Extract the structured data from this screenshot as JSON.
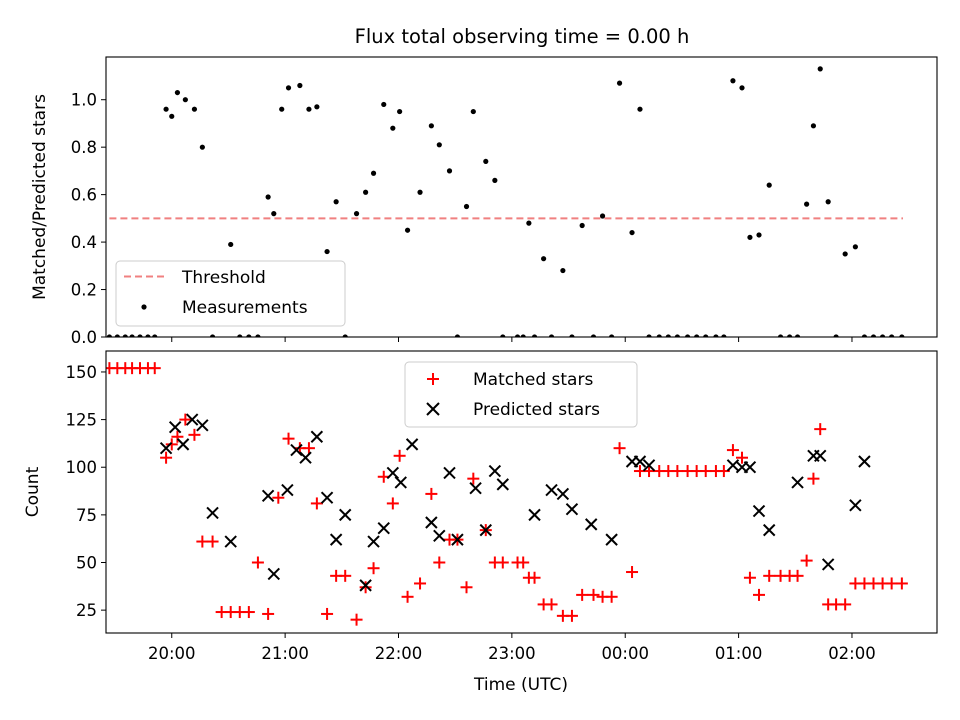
{
  "figure": {
    "title": "Flux total observing time = 0.00 h",
    "xlabel": "Time (UTC)"
  },
  "chart_data": [
    {
      "type": "scatter",
      "panel": "top",
      "title": "Flux total observing time = 0.00 h",
      "ylabel": "Matched/Predicted stars",
      "xlim": [
        -0.58,
        6.75
      ],
      "ylim": [
        0,
        1.18
      ],
      "yticks": [
        0.0,
        0.2,
        0.4,
        0.6,
        0.8,
        1.0
      ],
      "ytick_labels": [
        "0.0",
        "0.2",
        "0.4",
        "0.6",
        "0.8",
        "1.0"
      ],
      "legend": {
        "placement": "lower-left",
        "entries": [
          "Threshold",
          "Measurements"
        ]
      },
      "series": [
        {
          "name": "Threshold",
          "kind": "dashed-line",
          "color": "#f08080",
          "x": [
            -0.55,
            6.45
          ],
          "y": [
            0.5,
            0.5
          ]
        },
        {
          "name": "Measurements",
          "kind": "dots",
          "color": "#000000",
          "x": [
            -0.55,
            -0.48,
            -0.41,
            -0.35,
            -0.28,
            -0.21,
            -0.15,
            -0.05,
            0.0,
            0.05,
            0.12,
            0.2,
            0.27,
            0.36,
            0.52,
            0.6,
            0.68,
            0.76,
            0.85,
            0.9,
            0.97,
            1.03,
            1.13,
            1.21,
            1.28,
            1.37,
            1.45,
            1.53,
            1.63,
            1.71,
            1.78,
            1.87,
            1.95,
            2.01,
            2.08,
            2.19,
            2.29,
            2.36,
            2.45,
            2.52,
            2.6,
            2.66,
            2.77,
            2.85,
            2.92,
            3.05,
            3.1,
            3.15,
            3.2,
            3.28,
            3.35,
            3.45,
            3.53,
            3.62,
            3.72,
            3.8,
            3.88,
            3.95,
            4.06,
            4.13,
            4.21,
            4.3,
            4.38,
            4.46,
            4.55,
            4.63,
            4.71,
            4.8,
            4.87,
            4.95,
            5.03,
            5.1,
            5.18,
            5.27,
            5.37,
            5.45,
            5.52,
            5.6,
            5.66,
            5.72,
            5.79,
            5.86,
            5.94,
            6.03,
            6.11,
            6.19,
            6.27,
            6.35,
            6.44
          ],
          "y": [
            0,
            0,
            0,
            0,
            0,
            0,
            0,
            0.96,
            0.93,
            1.03,
            1.0,
            0.96,
            0.8,
            0,
            0.39,
            0,
            0,
            0,
            0.59,
            0.52,
            0.96,
            1.05,
            1.06,
            0.96,
            0.97,
            0.36,
            0.57,
            0,
            0.52,
            0.61,
            0.69,
            0.98,
            0.88,
            0.95,
            0.45,
            0.61,
            0.89,
            0.81,
            0.7,
            0,
            0.55,
            0.95,
            0.74,
            0.66,
            0,
            0,
            0,
            0.48,
            0,
            0.33,
            0,
            0.28,
            0,
            0.47,
            0,
            0.51,
            0,
            1.07,
            0.44,
            0.96,
            0,
            0,
            0,
            0,
            0,
            0,
            0,
            0,
            0,
            1.08,
            1.05,
            0.42,
            0.43,
            0.64,
            0,
            0,
            0,
            0.56,
            0.89,
            1.13,
            0.57,
            0,
            0.35,
            0.38,
            0,
            0,
            0,
            0,
            0
          ]
        }
      ]
    },
    {
      "type": "scatter",
      "panel": "bottom",
      "ylabel": "Count",
      "xlabel": "Time (UTC)",
      "xlim": [
        -0.58,
        6.75
      ],
      "ylim": [
        13,
        161
      ],
      "yticks": [
        25,
        50,
        75,
        100,
        125,
        150
      ],
      "ytick_labels": [
        "25",
        "50",
        "75",
        "100",
        "125",
        "150"
      ],
      "xticks": [
        0,
        1,
        2,
        3,
        4,
        5,
        6
      ],
      "xtick_labels": [
        "20:00",
        "21:00",
        "22:00",
        "23:00",
        "00:00",
        "01:00",
        "02:00"
      ],
      "legend": {
        "placement": "upper-center",
        "entries": [
          "Matched stars",
          "Predicted stars"
        ]
      },
      "series": [
        {
          "name": "Matched stars",
          "kind": "plus",
          "color": "#ff0000",
          "x": [
            -0.55,
            -0.48,
            -0.41,
            -0.35,
            -0.28,
            -0.21,
            -0.15,
            -0.05,
            0.0,
            0.05,
            0.12,
            0.2,
            0.27,
            0.36,
            0.44,
            0.52,
            0.6,
            0.68,
            0.76,
            0.85,
            0.94,
            1.03,
            1.13,
            1.21,
            1.28,
            1.37,
            1.45,
            1.53,
            1.63,
            1.71,
            1.78,
            1.87,
            1.95,
            2.01,
            2.08,
            2.19,
            2.29,
            2.36,
            2.45,
            2.52,
            2.6,
            2.66,
            2.77,
            2.85,
            2.92,
            3.05,
            3.1,
            3.15,
            3.2,
            3.28,
            3.35,
            3.45,
            3.53,
            3.62,
            3.72,
            3.8,
            3.88,
            3.95,
            4.06,
            4.13,
            4.21,
            4.3,
            4.38,
            4.46,
            4.55,
            4.63,
            4.71,
            4.8,
            4.87,
            4.95,
            5.03,
            5.1,
            5.18,
            5.27,
            5.37,
            5.45,
            5.52,
            5.6,
            5.66,
            5.72,
            5.79,
            5.86,
            5.94,
            6.03,
            6.11,
            6.19,
            6.27,
            6.35,
            6.44
          ],
          "y": [
            152,
            152,
            152,
            152,
            152,
            152,
            152,
            105,
            112,
            116,
            125,
            117,
            61,
            61,
            24,
            24,
            24,
            24,
            50,
            23,
            84,
            115,
            110,
            110,
            81,
            23,
            43,
            43,
            20,
            37,
            47,
            95,
            81,
            106,
            32,
            39,
            86,
            50,
            62,
            62,
            37,
            94,
            67,
            50,
            50,
            50,
            50,
            42,
            42,
            28,
            28,
            22,
            22,
            33,
            33,
            32,
            32,
            110,
            45,
            98,
            98,
            98,
            98,
            98,
            98,
            98,
            98,
            98,
            98,
            109,
            105,
            42,
            33,
            43,
            43,
            43,
            43,
            51,
            94,
            120,
            28,
            28,
            28,
            39,
            39,
            39,
            39,
            39,
            39
          ]
        },
        {
          "name": "Predicted stars",
          "kind": "cross",
          "color": "#000000",
          "x": [
            -0.05,
            0.03,
            0.1,
            0.18,
            0.27,
            0.36,
            0.52,
            0.85,
            0.9,
            1.02,
            1.1,
            1.18,
            1.28,
            1.37,
            1.45,
            1.53,
            1.71,
            1.78,
            1.87,
            1.95,
            2.02,
            2.12,
            2.29,
            2.36,
            2.45,
            2.52,
            2.68,
            2.77,
            2.85,
            2.92,
            3.2,
            3.35,
            3.45,
            3.53,
            3.7,
            3.88,
            4.06,
            4.13,
            4.21,
            4.95,
            5.03,
            5.1,
            5.18,
            5.27,
            5.52,
            5.66,
            5.72,
            5.79,
            6.03,
            6.11
          ],
          "y": [
            110,
            121,
            112,
            125,
            122,
            76,
            61,
            85,
            44,
            88,
            109,
            105,
            116,
            84,
            62,
            75,
            38,
            61,
            68,
            97,
            92,
            112,
            71,
            64,
            97,
            62,
            89,
            67,
            98,
            91,
            75,
            88,
            86,
            78,
            70,
            62,
            103,
            103,
            101,
            101,
            100,
            100,
            77,
            67,
            92,
            106,
            106,
            49,
            80,
            103
          ]
        }
      ]
    }
  ]
}
